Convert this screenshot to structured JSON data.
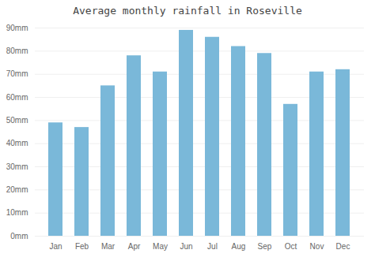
{
  "chart_data": {
    "type": "bar",
    "title": "Average monthly rainfall in Roseville",
    "categories": [
      "Jan",
      "Feb",
      "Mar",
      "Apr",
      "May",
      "Jun",
      "Jul",
      "Aug",
      "Sep",
      "Oct",
      "Nov",
      "Dec"
    ],
    "values": [
      49,
      47,
      65,
      78,
      71,
      89,
      86,
      82,
      79,
      57,
      71,
      72
    ],
    "color": "#7ab8d9",
    "ylim": [
      0,
      90
    ],
    "yticks": [
      {
        "value": 0,
        "label": "0mm"
      },
      {
        "value": 10,
        "label": "10mm"
      },
      {
        "value": 20,
        "label": "20mm"
      },
      {
        "value": 30,
        "label": "30mm"
      },
      {
        "value": 40,
        "label": "40mm"
      },
      {
        "value": 50,
        "label": "50mm"
      },
      {
        "value": 60,
        "label": "60mm"
      },
      {
        "value": 70,
        "label": "70mm"
      },
      {
        "value": 80,
        "label": "80mm"
      },
      {
        "value": 90,
        "label": "90mm"
      }
    ],
    "grid": true
  }
}
